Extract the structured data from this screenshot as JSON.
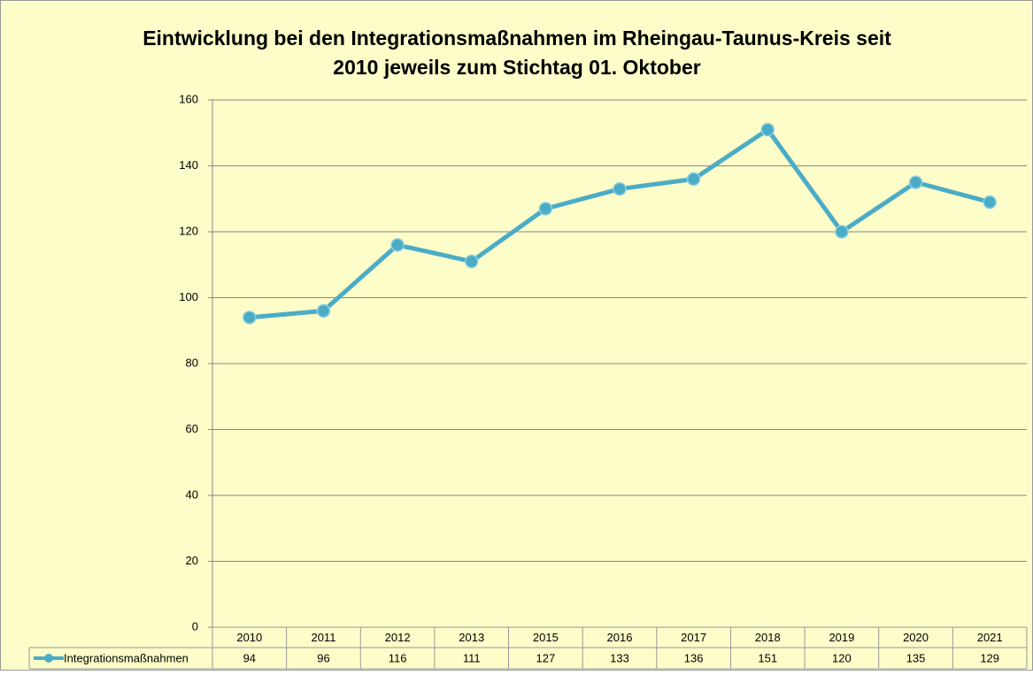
{
  "chart_data": {
    "type": "line",
    "title": [
      "Eintwicklung bei den Integrationsmaßnahmen im Rheingau-Taunus-Kreis seit",
      "2010 jeweils zum Stichtag 01. Oktober"
    ],
    "categories": [
      "2010",
      "2011",
      "2012",
      "2013",
      "2015",
      "2016",
      "2017",
      "2018",
      "2019",
      "2020",
      "2021"
    ],
    "series": [
      {
        "name": "Integrationsmaßnahmen",
        "color": "#4bacc6",
        "values": [
          94,
          96,
          116,
          111,
          127,
          133,
          136,
          151,
          120,
          135,
          129
        ]
      }
    ],
    "ylim": [
      0,
      160
    ],
    "yticks": [
      0,
      20,
      40,
      60,
      80,
      100,
      120,
      140,
      160
    ],
    "grid": true,
    "data_table": true
  }
}
